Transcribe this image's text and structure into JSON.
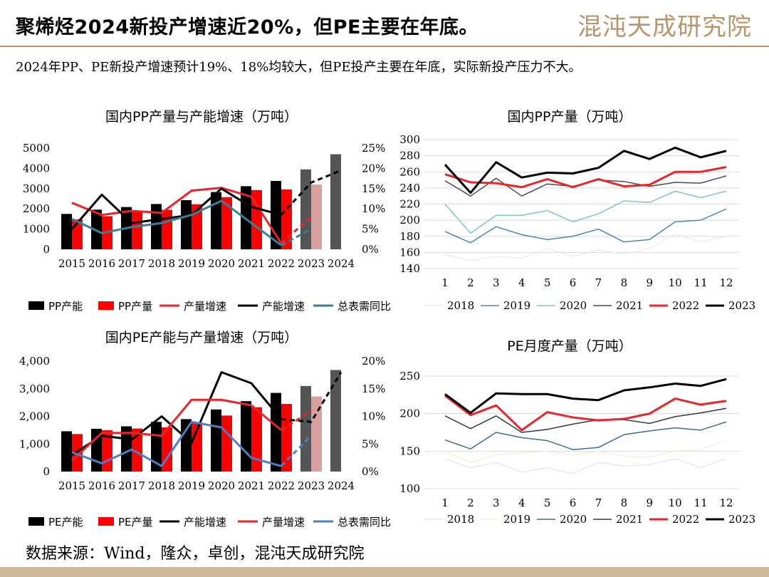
{
  "header": {
    "title": "聚烯烃2024新投产增速近20%，但PE主要在年底。",
    "logo": "混沌天成研究院",
    "subtitle": "2024年PP、PE新投产增速预计19%、18%均较大，但PE投产主要在年底，实际新投产压力不大。"
  },
  "footer": {
    "source": "数据来源：Wind，隆众，卓创，混沌天成研究院"
  },
  "colors": {
    "gold": "#b8956a",
    "black": "#000000",
    "red": "#ff0000",
    "line_red": "#e8262a",
    "teal": "#3b7f96",
    "blue": "#4f7fbf"
  },
  "chart_data": [
    {
      "id": "pp_capacity",
      "type": "bar",
      "title": "国内PP产量与产能增速（万吨）",
      "categories": [
        "2015",
        "2016",
        "2017",
        "2018",
        "2019",
        "2020",
        "2021",
        "2022",
        "2023",
        "2024"
      ],
      "ylim": [
        0,
        5000
      ],
      "yticks": [
        "0",
        "1000",
        "2000",
        "3000",
        "4000",
        "5000"
      ],
      "y2lim": [
        0,
        25
      ],
      "y2ticks": [
        "0%",
        "5%",
        "10%",
        "15%",
        "20%",
        "25%"
      ],
      "series": [
        {
          "name": "PP产能",
          "kind": "bar",
          "axis": "left",
          "color": "#000000",
          "values": [
            1750,
            1960,
            2090,
            2240,
            2430,
            2830,
            3120,
            3380,
            3950,
            4700
          ],
          "colors": {
            "8": "#555555",
            "9": "#555555"
          }
        },
        {
          "name": "PP产量",
          "kind": "bar",
          "axis": "left",
          "color": "#ff0000",
          "values": [
            1480,
            1640,
            1890,
            1950,
            2230,
            2580,
            2930,
            2960,
            3200,
            null
          ],
          "colors": {
            "8": "#d9a0a0"
          }
        },
        {
          "name": "产量增速",
          "kind": "line",
          "axis": "right",
          "color": "#e8262a",
          "values": [
            11.5,
            8.5,
            9.5,
            9.0,
            14.5,
            15.2,
            13.0,
            1.5,
            8.0,
            null
          ],
          "dashed_from": 7
        },
        {
          "name": "产能增速",
          "kind": "line",
          "axis": "right",
          "color": "#000000",
          "values": [
            5.0,
            13.5,
            6.5,
            7.5,
            8.5,
            15.0,
            10.5,
            8.5,
            16.5,
            19.5
          ],
          "dashed_from": 7
        },
        {
          "name": "总表需同比",
          "kind": "line",
          "axis": "right",
          "color": "#3b7f96",
          "values": [
            7.5,
            4.0,
            5.5,
            6.5,
            8.5,
            12.0,
            6.5,
            1.0,
            5.0,
            null
          ],
          "dashed_from": 7
        }
      ]
    },
    {
      "id": "pp_monthly",
      "type": "line",
      "title": "国内PP产量（万吨）",
      "categories": [
        "1",
        "2",
        "3",
        "4",
        "5",
        "6",
        "7",
        "8",
        "9",
        "10",
        "11",
        "12"
      ],
      "ylim": [
        140,
        300
      ],
      "yticks": [
        "140",
        "160",
        "180",
        "200",
        "220",
        "240",
        "260",
        "280",
        "300"
      ],
      "series": [
        {
          "name": "2018",
          "color": "#e8e8e8",
          "width": 1.2,
          "values": [
            157,
            150,
            155,
            153,
            165,
            155,
            163,
            158,
            165,
            183,
            173,
            180
          ]
        },
        {
          "name": "2019",
          "color": "#4f86ad",
          "width": 1.5,
          "values": [
            186,
            172,
            192,
            182,
            176,
            180,
            189,
            173,
            176,
            198,
            200,
            214
          ]
        },
        {
          "name": "2020",
          "color": "#7fc9ac",
          "width": 1.5,
          "values": [
            220,
            184,
            206,
            206,
            212,
            198,
            208,
            224,
            222,
            236,
            228,
            236
          ]
        },
        {
          "name": "2021",
          "color": "#444c56",
          "width": 1.5,
          "values": [
            249,
            230,
            252,
            230,
            245,
            242,
            250,
            248,
            242,
            247,
            246,
            255
          ]
        },
        {
          "name": "2022",
          "color": "#e8262a",
          "width": 3,
          "values": [
            257,
            247,
            246,
            241,
            251,
            241,
            251,
            242,
            244,
            260,
            260,
            266
          ]
        },
        {
          "name": "2023",
          "color": "#000000",
          "width": 3,
          "values": [
            269,
            234,
            272,
            253,
            259,
            258,
            265,
            286,
            276,
            290,
            278,
            286
          ]
        }
      ]
    },
    {
      "id": "pe_capacity",
      "type": "bar",
      "title": "国内PE产能与产量增速（万吨）",
      "categories": [
        "2015",
        "2016",
        "2017",
        "2018",
        "2019",
        "2020",
        "2021",
        "2022",
        "2023",
        "2024"
      ],
      "ylim": [
        0,
        4000
      ],
      "yticks": [
        "0",
        "1,000",
        "2,000",
        "3,000",
        "4,000"
      ],
      "y2lim": [
        0,
        20
      ],
      "y2ticks": [
        "0%",
        "5%",
        "10%",
        "15%",
        "20%"
      ],
      "series": [
        {
          "name": "PE产能",
          "kind": "bar",
          "axis": "left",
          "color": "#000000",
          "values": [
            1460,
            1550,
            1640,
            1800,
            1900,
            2250,
            2550,
            2850,
            3100,
            3680
          ],
          "colors": {
            "8": "#555555",
            "9": "#555555"
          }
        },
        {
          "name": "PE产量",
          "kind": "bar",
          "axis": "left",
          "color": "#ff0000",
          "values": [
            1360,
            1500,
            1560,
            1600,
            1780,
            2030,
            2330,
            2450,
            2720,
            null
          ],
          "colors": {
            "8": "#d9a0a0"
          }
        },
        {
          "name": "产能增速",
          "kind": "line",
          "axis": "right",
          "color": "#000000",
          "values": [
            3.0,
            6.5,
            5.8,
            10.0,
            5.2,
            18.0,
            16.0,
            9.5,
            9.0,
            18.0
          ],
          "dashed_from": 7
        },
        {
          "name": "产量增速",
          "kind": "line",
          "axis": "right",
          "color": "#e8262a",
          "values": [
            2.0,
            7.0,
            7.0,
            6.5,
            13.0,
            13.0,
            12.0,
            7.5,
            11.0,
            null
          ],
          "dashed_from": 7
        },
        {
          "name": "总表需同比",
          "kind": "line",
          "axis": "right",
          "color": "#4f7fbf",
          "values": [
            3.5,
            1.5,
            4.0,
            1.0,
            9.0,
            8.0,
            2.5,
            1.0,
            6.5,
            null
          ],
          "dashed_from": 7
        }
      ]
    },
    {
      "id": "pe_monthly",
      "type": "line",
      "title": "PE月度产量（万吨）",
      "categories": [
        "1",
        "2",
        "3",
        "4",
        "5",
        "6",
        "7",
        "8",
        "9",
        "10",
        "11",
        "12"
      ],
      "ylim": [
        100,
        250
      ],
      "yticks": [
        "100",
        "150",
        "200",
        "250"
      ],
      "series": [
        {
          "name": "2018",
          "color": "#e4e4e4",
          "width": 1.2,
          "values": [
            140,
            128,
            135,
            122,
            128,
            120,
            135,
            130,
            132,
            140,
            128,
            140
          ]
        },
        {
          "name": "2019",
          "color": "#f3ecd2",
          "width": 1.2,
          "values": [
            150,
            135,
            145,
            148,
            150,
            145,
            150,
            143,
            142,
            150,
            152,
            165
          ]
        },
        {
          "name": "2020",
          "color": "#3f6e8f",
          "width": 1.5,
          "values": [
            165,
            153,
            175,
            168,
            164,
            152,
            155,
            172,
            177,
            181,
            178,
            189
          ]
        },
        {
          "name": "2021",
          "color": "#2f3a4a",
          "width": 1.5,
          "values": [
            197,
            180,
            197,
            175,
            179,
            186,
            192,
            192,
            187,
            196,
            201,
            207
          ]
        },
        {
          "name": "2022",
          "color": "#e8262a",
          "width": 3,
          "values": [
            224,
            198,
            211,
            178,
            202,
            195,
            191,
            193,
            200,
            220,
            212,
            217
          ]
        },
        {
          "name": "2023",
          "color": "#000000",
          "width": 3,
          "values": [
            226,
            201,
            227,
            226,
            226,
            220,
            218,
            231,
            235,
            240,
            237,
            246
          ]
        }
      ]
    }
  ]
}
